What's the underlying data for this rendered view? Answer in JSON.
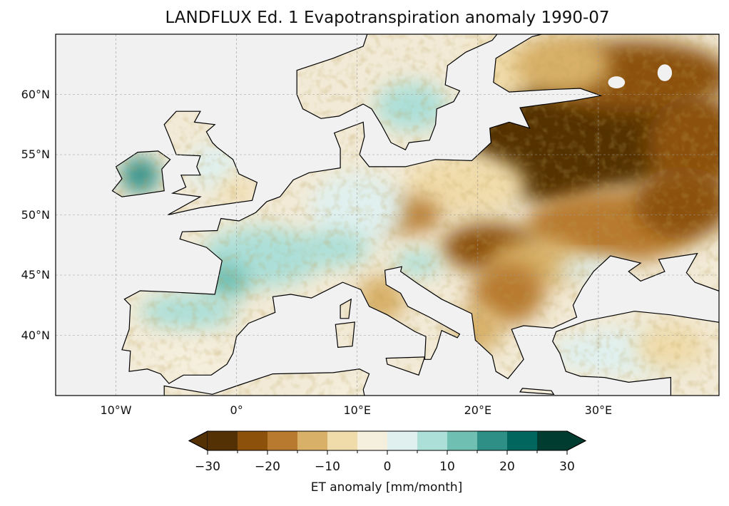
{
  "title": "LANDFLUX Ed. 1 Evapotranspiration anomaly 1990-07",
  "map": {
    "projection": "PlateCarree",
    "lon_range": [
      -15,
      40
    ],
    "lat_range": [
      35,
      65
    ],
    "x_ticks": [
      {
        "value": -10,
        "label": "10°W"
      },
      {
        "value": 0,
        "label": "0°"
      },
      {
        "value": 10,
        "label": "10°E"
      },
      {
        "value": 20,
        "label": "20°E"
      },
      {
        "value": 30,
        "label": "30°E"
      }
    ],
    "y_ticks": [
      {
        "value": 60,
        "label": "60°N"
      },
      {
        "value": 55,
        "label": "55°N"
      },
      {
        "value": 50,
        "label": "50°N"
      },
      {
        "value": 45,
        "label": "45°N"
      },
      {
        "value": 40,
        "label": "40°N"
      }
    ],
    "ocean_color": "#f1f1f1"
  },
  "colorbar": {
    "label": "ET anomaly [mm/month]",
    "range": [
      -30,
      30
    ],
    "extend": "both",
    "bounds": [
      -30,
      -25,
      -20,
      -15,
      -10,
      -5,
      0,
      5,
      10,
      15,
      20,
      25,
      30
    ],
    "colors": [
      "#543005",
      "#8c510a",
      "#b87a2e",
      "#d8b067",
      "#f0dbaa",
      "#f5efdd",
      "#e0f0ee",
      "#acdfd8",
      "#6fbfb2",
      "#2e8f87",
      "#01665e",
      "#003c30"
    ],
    "under_color": "#543005",
    "over_color": "#003c30",
    "tick_labels": [
      {
        "value": -30,
        "label": "−30"
      },
      {
        "value": -20,
        "label": "−20"
      },
      {
        "value": -10,
        "label": "−10"
      },
      {
        "value": 0,
        "label": "0"
      },
      {
        "value": 10,
        "label": "10"
      },
      {
        "value": 20,
        "label": "20"
      },
      {
        "value": 30,
        "label": "30"
      }
    ]
  }
}
